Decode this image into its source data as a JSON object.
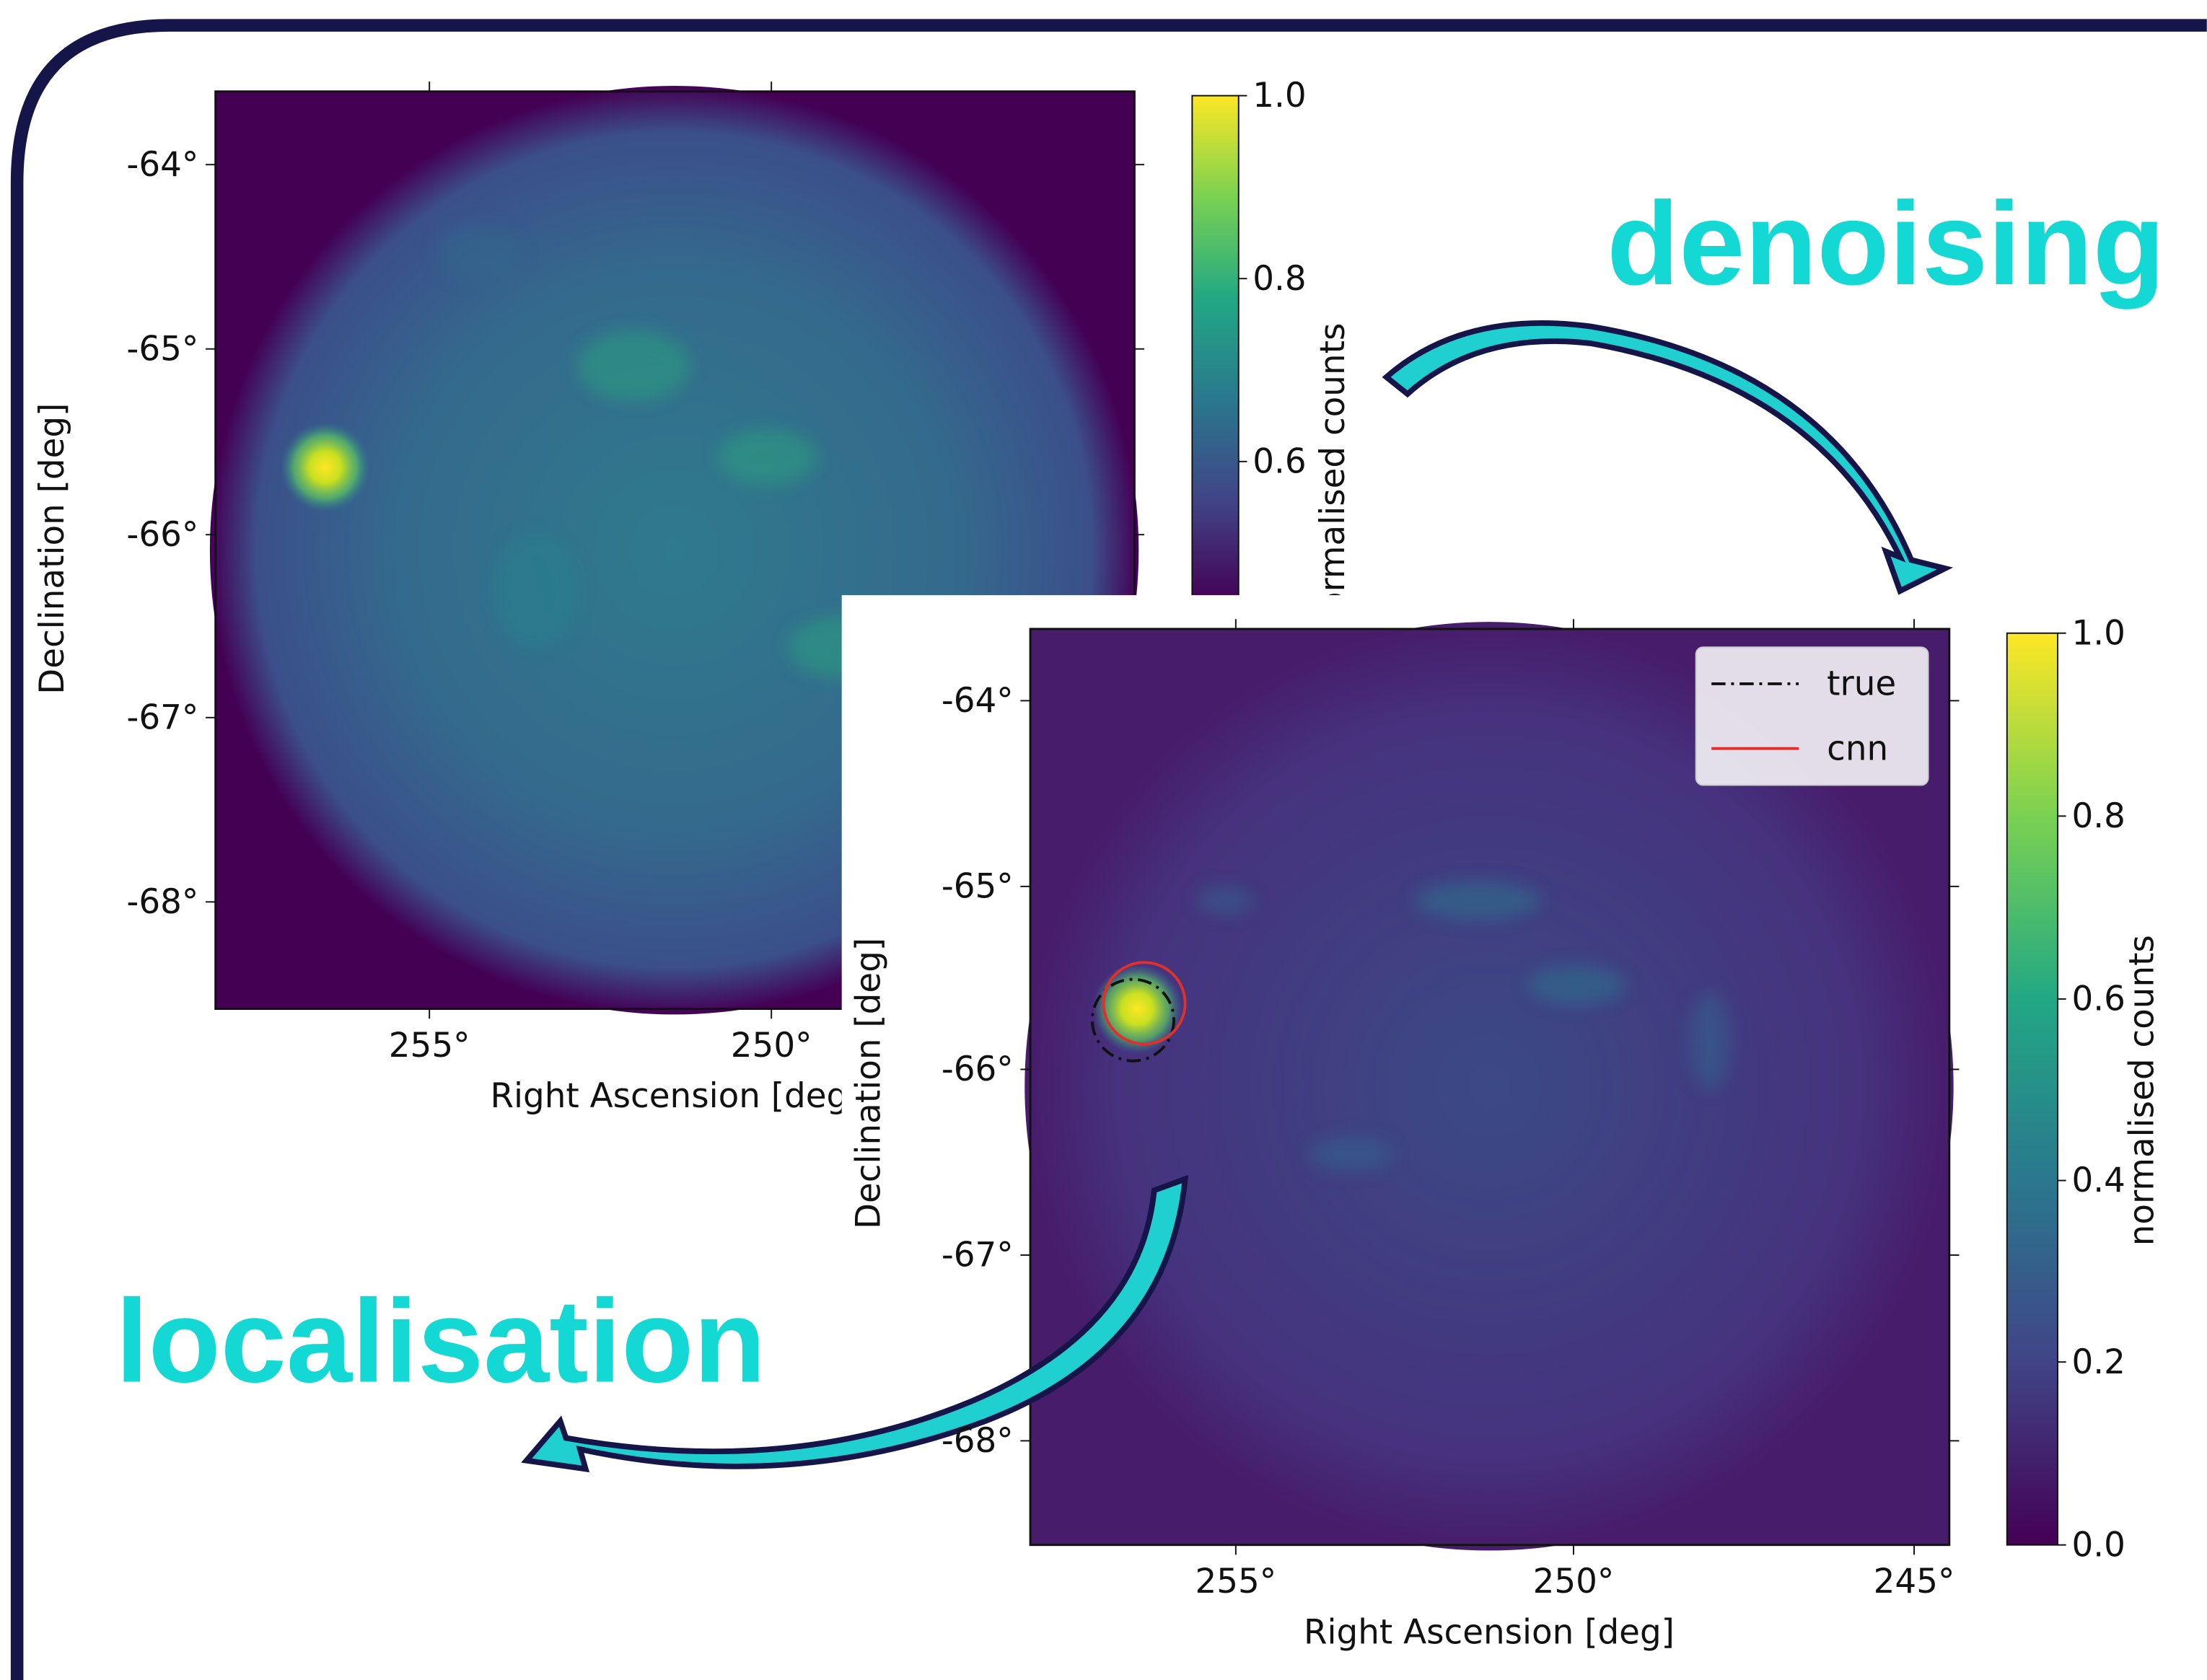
{
  "annotations": {
    "top": "denoising",
    "bottom": "localisation"
  },
  "panels": [
    {
      "xlabel": "Right Ascension [deg]",
      "ylabel": "Declination [deg]",
      "xticks": [
        "255°",
        "250°"
      ],
      "yticks": [
        "-64°",
        "-65°",
        "-66°",
        "-67°",
        "-68°"
      ],
      "colorbar": {
        "label": "normalised counts",
        "ticks": [
          "1.0",
          "0.8",
          "0.6"
        ]
      }
    },
    {
      "xlabel": "Right Ascension [deg]",
      "ylabel": "Declination [deg]",
      "xticks": [
        "255°",
        "250°",
        "245°"
      ],
      "yticks": [
        "-64°",
        "-65°",
        "-66°",
        "-67°",
        "-68°"
      ],
      "colorbar": {
        "label": "normalised counts",
        "ticks": [
          "1.0",
          "0.8",
          "0.6",
          "0.4",
          "0.2",
          "0.0"
        ]
      },
      "legend": [
        "true",
        "cnn"
      ]
    }
  ]
}
